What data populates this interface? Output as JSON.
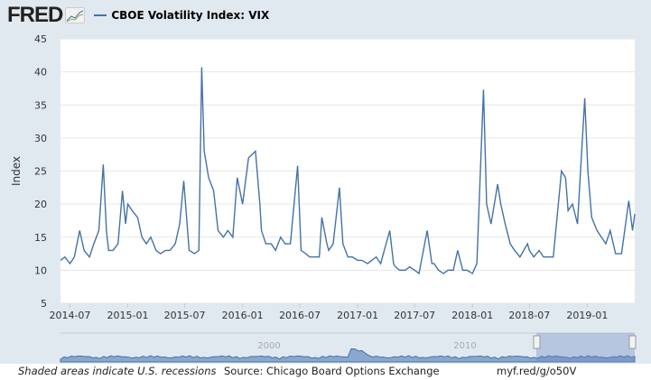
{
  "header": {
    "logo": "FRED",
    "legend_label": "CBOE Volatility Index: VIX"
  },
  "footer": {
    "recession_note": "Shaded areas indicate U.S. recessions",
    "source": "Source: Chicago Board Options Exchange",
    "url": "myf.red/g/o50V"
  },
  "navigator": {
    "labels": [
      "2000",
      "2010"
    ]
  },
  "colors": {
    "series": "#4572a7",
    "background": "#e1e9f0",
    "plot": "#ffffff"
  },
  "chart_data": {
    "type": "line",
    "title": "CBOE Volatility Index: VIX",
    "ylabel": "Index",
    "xlabel": "",
    "ylim": [
      5,
      45
    ],
    "yticks": [
      5,
      10,
      15,
      20,
      25,
      30,
      35,
      40,
      45
    ],
    "xticks": [
      "2014-07",
      "2015-01",
      "2015-07",
      "2016-01",
      "2016-07",
      "2017-01",
      "2017-07",
      "2018-01",
      "2018-07",
      "2019-01"
    ],
    "grid": "horizontal",
    "legend": "top-left",
    "points": [
      [
        "2014-06-01",
        11.5
      ],
      [
        "2014-06-15",
        12
      ],
      [
        "2014-07-01",
        11
      ],
      [
        "2014-07-15",
        12
      ],
      [
        "2014-08-01",
        16
      ],
      [
        "2014-08-15",
        13
      ],
      [
        "2014-09-01",
        12
      ],
      [
        "2014-09-15",
        14
      ],
      [
        "2014-10-01",
        16
      ],
      [
        "2014-10-15",
        26
      ],
      [
        "2014-10-25",
        16
      ],
      [
        "2014-11-01",
        13
      ],
      [
        "2014-11-15",
        13
      ],
      [
        "2014-12-01",
        14
      ],
      [
        "2014-12-15",
        22
      ],
      [
        "2014-12-25",
        17
      ],
      [
        "2015-01-01",
        20
      ],
      [
        "2015-01-15",
        19
      ],
      [
        "2015-02-01",
        18
      ],
      [
        "2015-02-15",
        15
      ],
      [
        "2015-03-01",
        14
      ],
      [
        "2015-03-15",
        15
      ],
      [
        "2015-04-01",
        13
      ],
      [
        "2015-04-15",
        12.5
      ],
      [
        "2015-05-01",
        13
      ],
      [
        "2015-05-15",
        13
      ],
      [
        "2015-06-01",
        14
      ],
      [
        "2015-06-15",
        17
      ],
      [
        "2015-06-28",
        23.5
      ],
      [
        "2015-07-15",
        13
      ],
      [
        "2015-08-01",
        12.5
      ],
      [
        "2015-08-15",
        13
      ],
      [
        "2015-08-24",
        40.7
      ],
      [
        "2015-09-01",
        28
      ],
      [
        "2015-09-15",
        24
      ],
      [
        "2015-10-01",
        22
      ],
      [
        "2015-10-15",
        16
      ],
      [
        "2015-11-01",
        15
      ],
      [
        "2015-11-15",
        16
      ],
      [
        "2015-12-01",
        15
      ],
      [
        "2015-12-15",
        24
      ],
      [
        "2016-01-01",
        20
      ],
      [
        "2016-01-20",
        27
      ],
      [
        "2016-02-11",
        28
      ],
      [
        "2016-02-25",
        20
      ],
      [
        "2016-03-01",
        16
      ],
      [
        "2016-03-15",
        14
      ],
      [
        "2016-04-01",
        14
      ],
      [
        "2016-04-15",
        13
      ],
      [
        "2016-05-01",
        15
      ],
      [
        "2016-05-15",
        14
      ],
      [
        "2016-06-01",
        14
      ],
      [
        "2016-06-24",
        25.8
      ],
      [
        "2016-07-05",
        13
      ],
      [
        "2016-07-20",
        12.5
      ],
      [
        "2016-08-01",
        12
      ],
      [
        "2016-08-15",
        12
      ],
      [
        "2016-09-01",
        12
      ],
      [
        "2016-09-09",
        18
      ],
      [
        "2016-09-25",
        14
      ],
      [
        "2016-10-01",
        13
      ],
      [
        "2016-10-15",
        14
      ],
      [
        "2016-11-04",
        22.5
      ],
      [
        "2016-11-15",
        14
      ],
      [
        "2016-12-01",
        12
      ],
      [
        "2016-12-15",
        12
      ],
      [
        "2017-01-01",
        11.5
      ],
      [
        "2017-01-15",
        11.5
      ],
      [
        "2017-02-01",
        11
      ],
      [
        "2017-02-15",
        11.5
      ],
      [
        "2017-03-01",
        12
      ],
      [
        "2017-03-15",
        11
      ],
      [
        "2017-04-13",
        16
      ],
      [
        "2017-04-25",
        11
      ],
      [
        "2017-05-01",
        10.5
      ],
      [
        "2017-05-15",
        10
      ],
      [
        "2017-06-01",
        10
      ],
      [
        "2017-06-15",
        10.5
      ],
      [
        "2017-07-01",
        10
      ],
      [
        "2017-07-15",
        9.5
      ],
      [
        "2017-08-10",
        16
      ],
      [
        "2017-08-25",
        11
      ],
      [
        "2017-09-01",
        11
      ],
      [
        "2017-09-15",
        10
      ],
      [
        "2017-10-01",
        9.5
      ],
      [
        "2017-10-15",
        10
      ],
      [
        "2017-11-01",
        10
      ],
      [
        "2017-11-15",
        13
      ],
      [
        "2017-12-01",
        10
      ],
      [
        "2017-12-15",
        10
      ],
      [
        "2018-01-01",
        9.5
      ],
      [
        "2018-01-15",
        11
      ],
      [
        "2018-02-05",
        37.3
      ],
      [
        "2018-02-15",
        20
      ],
      [
        "2018-03-01",
        17
      ],
      [
        "2018-03-22",
        23
      ],
      [
        "2018-04-01",
        20
      ],
      [
        "2018-04-15",
        17
      ],
      [
        "2018-05-01",
        14
      ],
      [
        "2018-05-15",
        13
      ],
      [
        "2018-06-01",
        12
      ],
      [
        "2018-06-25",
        14
      ],
      [
        "2018-07-01",
        13
      ],
      [
        "2018-07-15",
        12
      ],
      [
        "2018-08-01",
        13
      ],
      [
        "2018-08-15",
        12
      ],
      [
        "2018-09-01",
        12
      ],
      [
        "2018-09-15",
        12
      ],
      [
        "2018-10-11",
        25
      ],
      [
        "2018-10-24",
        24
      ],
      [
        "2018-11-01",
        19
      ],
      [
        "2018-11-15",
        20
      ],
      [
        "2018-12-01",
        17
      ],
      [
        "2018-12-24",
        36
      ],
      [
        "2019-01-03",
        25
      ],
      [
        "2019-01-15",
        18
      ],
      [
        "2019-02-01",
        16
      ],
      [
        "2019-02-15",
        15
      ],
      [
        "2019-03-01",
        14
      ],
      [
        "2019-03-15",
        16
      ],
      [
        "2019-04-01",
        12.5
      ],
      [
        "2019-04-20",
        12.5
      ],
      [
        "2019-05-13",
        20.5
      ],
      [
        "2019-05-25",
        16
      ],
      [
        "2019-06-01",
        18.5
      ]
    ]
  }
}
